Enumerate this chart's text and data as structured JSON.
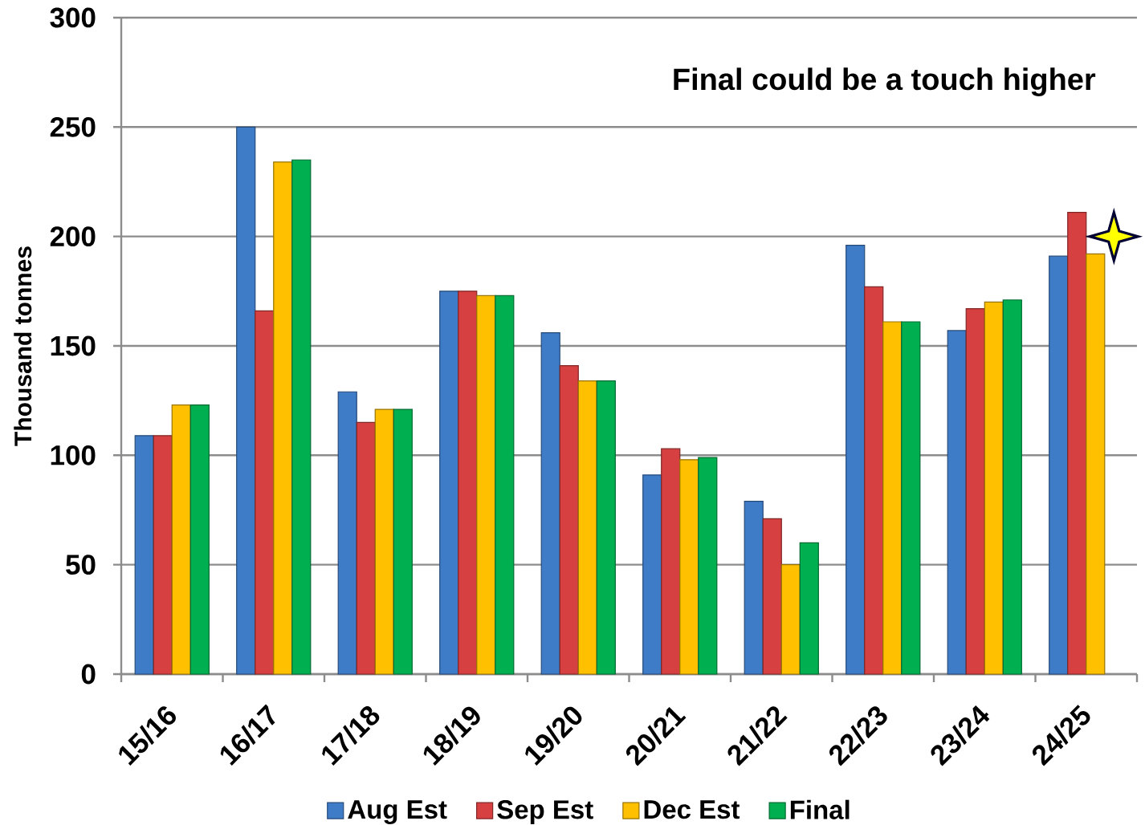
{
  "chart_data": {
    "type": "bar",
    "annotations": [
      "Final could be a touch higher"
    ],
    "ylabel": "Thousand tonnes",
    "categories": [
      "15/16",
      "16/17",
      "17/18",
      "18/19",
      "19/20",
      "20/21",
      "21/22",
      "22/23",
      "23/24",
      "24/25"
    ],
    "series": [
      {
        "name": "Aug Est",
        "color": "#3f7cc8",
        "values": [
          109,
          250,
          129,
          175,
          156,
          91,
          79,
          196,
          157,
          191
        ]
      },
      {
        "name": "Sep Est",
        "color": "#d64040",
        "values": [
          109,
          166,
          115,
          175,
          141,
          103,
          71,
          177,
          167,
          211
        ]
      },
      {
        "name": "Dec Est",
        "color": "#ffc000",
        "values": [
          123,
          234,
          121,
          173,
          134,
          98,
          50,
          161,
          170,
          192
        ]
      },
      {
        "name": "Final",
        "color": "#00b050",
        "values": [
          123,
          235,
          121,
          173,
          134,
          99,
          60,
          161,
          171,
          null
        ]
      },
      {
        "type": "scatter",
        "color": "#ffff00",
        "marker": "star",
        "x": [
          "24/25"
        ],
        "values": [
          200
        ]
      }
    ],
    "ylim": [
      0,
      300
    ],
    "yticks": [
      0,
      50,
      100,
      150,
      200,
      250,
      300
    ],
    "grid": "y",
    "legend": "bottom"
  }
}
